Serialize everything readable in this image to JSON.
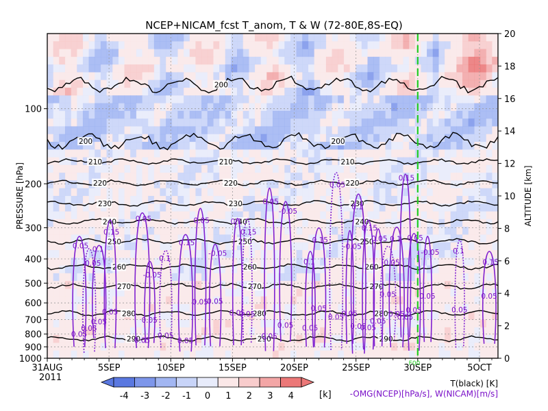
{
  "chart_data": {
    "type": "heatmap",
    "title": "NCEP+NICAM_fcst T_anom, T & W  (72-80E,8S-EQ)",
    "xlabel_year": "2011",
    "x_ticks": [
      {
        "label": "31AUG",
        "day": 0
      },
      {
        "label": "5SEP",
        "day": 5
      },
      {
        "label": "10SEP",
        "day": 10
      },
      {
        "label": "15SEP",
        "day": 15
      },
      {
        "label": "20SEP",
        "day": 20
      },
      {
        "label": "25SEP",
        "day": 25
      },
      {
        "label": "30SEP",
        "day": 30
      },
      {
        "label": "5OCT",
        "day": 35
      }
    ],
    "x_range_days": [
      0,
      36.5
    ],
    "forecast_start_day": 30,
    "forecast_marker": "F00",
    "y_left": {
      "label": "PRESSURE [hPa]",
      "scale": "log",
      "range": [
        1000,
        50
      ],
      "ticks": [
        100,
        200,
        300,
        400,
        500,
        600,
        700,
        800,
        900,
        1000
      ]
    },
    "y_right": {
      "label": "ALTITUDE [km]",
      "range": [
        0,
        20
      ],
      "ticks": [
        0,
        2,
        4,
        6,
        8,
        10,
        12,
        14,
        16,
        18,
        20
      ]
    },
    "temperature_contours": [
      {
        "label": "200",
        "p": 135
      },
      {
        "label": "200",
        "p": 80
      },
      {
        "label": "210",
        "p": 163
      },
      {
        "label": "220",
        "p": 198
      },
      {
        "label": "230",
        "p": 240
      },
      {
        "label": "240",
        "p": 283
      },
      {
        "label": "250",
        "p": 340
      },
      {
        "label": "260",
        "p": 430
      },
      {
        "label": "270",
        "p": 515
      },
      {
        "label": "280",
        "p": 660
      },
      {
        "label": "290",
        "p": 835
      }
    ],
    "omega_labels": [
      "0.05",
      "-0.05",
      "0.1",
      "0.15"
    ],
    "colorbar": {
      "ticks": [
        "-4",
        "-3",
        "-2",
        "-1",
        "0",
        "1",
        "2",
        "3",
        "4"
      ],
      "unit": "[k]",
      "colors": [
        "#5a78e0",
        "#7d96ea",
        "#a2b6f2",
        "#c8d4f8",
        "#e8ecfb",
        "#fbe8e8",
        "#f8cccc",
        "#f3a6a6",
        "#ec7878"
      ]
    },
    "legend": {
      "t_label": "T(black) [K]",
      "w_label": "-OMG(NCEP)[hPa/s], W(NICAM)[m/s]"
    }
  }
}
